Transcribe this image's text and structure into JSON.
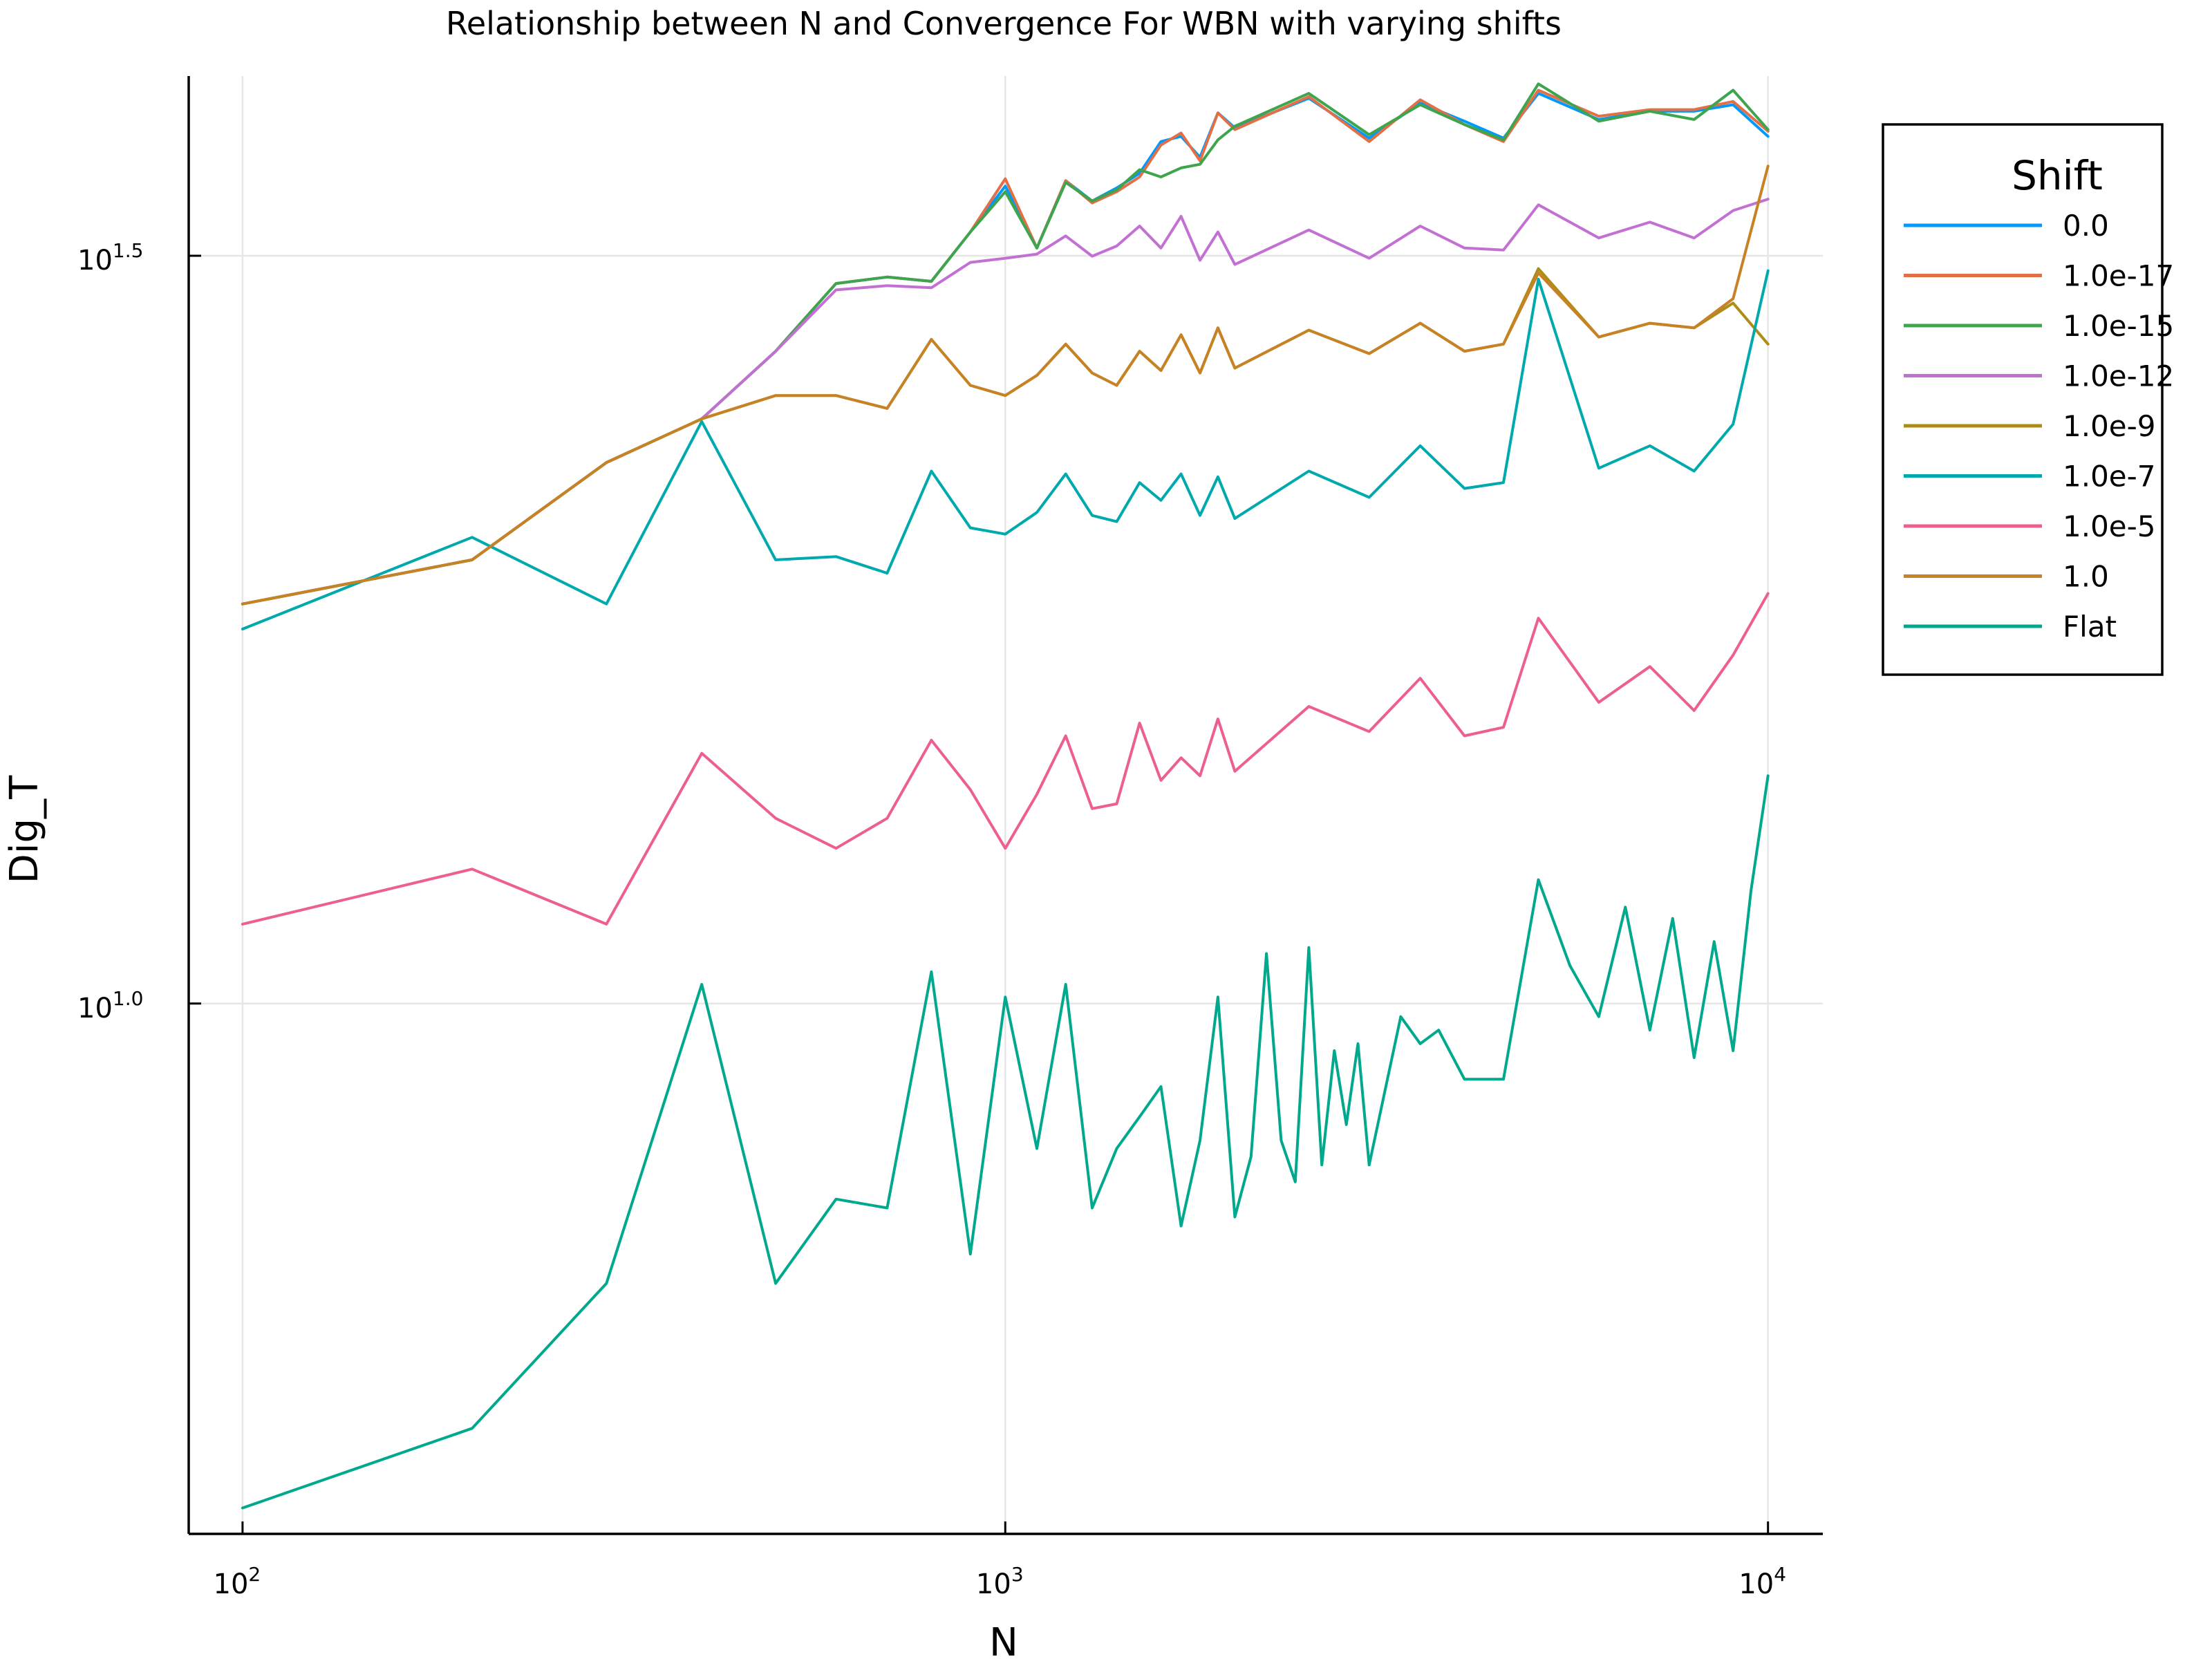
{
  "chart_data": {
    "type": "line",
    "title": "Relationship between N and Convergence For WBN with varying shifts",
    "xlabel": "N",
    "ylabel": "Dig_T",
    "x_scale": "log10",
    "y_scale": "log10",
    "xlim": [
      85,
      11800
    ],
    "ylim": [
      4.42,
      41.7
    ],
    "grid": true,
    "legend": {
      "title": "Shift",
      "placement": "top-right, outside plot area"
    },
    "x_ticks": [
      {
        "value": 100,
        "base": "10",
        "exp": "2"
      },
      {
        "value": 1000,
        "base": "10",
        "exp": "3"
      },
      {
        "value": 10000,
        "base": "10",
        "exp": "4"
      }
    ],
    "y_ticks": [
      {
        "value": 10,
        "base": "10",
        "exp": "1.0"
      },
      {
        "value": 31.62,
        "base": "10",
        "exp": "1.5"
      }
    ],
    "series": [
      {
        "name": "0.0",
        "color": "#009AFA",
        "x": [
          100,
          200,
          300,
          400,
          500,
          600,
          700,
          800,
          900,
          1000,
          1100,
          1200,
          1300,
          1400,
          1500,
          1600,
          1700,
          1800,
          1900,
          2000,
          2500,
          3000,
          3500,
          4000,
          4500,
          5000,
          6000,
          7000,
          8000,
          9000,
          10000
        ],
        "y": [
          18.5,
          19.8,
          23.0,
          24.6,
          27.3,
          30.3,
          30.6,
          30.4,
          32.8,
          35.2,
          32.0,
          35.5,
          34.4,
          35.1,
          35.9,
          37.7,
          38.0,
          36.8,
          39.4,
          38.5,
          40.3,
          37.9,
          40.0,
          38.9,
          37.9,
          40.6,
          39.0,
          39.5,
          39.5,
          39.9,
          38.0
        ]
      },
      {
        "name": "1.0e-17",
        "color": "#E36F47",
        "x": [
          100,
          200,
          300,
          400,
          500,
          600,
          700,
          800,
          900,
          1000,
          1100,
          1200,
          1300,
          1400,
          1500,
          1600,
          1700,
          1800,
          1900,
          2000,
          2500,
          3000,
          3500,
          4000,
          4500,
          5000,
          6000,
          7000,
          8000,
          9000,
          10000
        ],
        "y": [
          18.5,
          19.8,
          23.0,
          24.6,
          27.3,
          30.3,
          30.6,
          30.4,
          32.8,
          35.6,
          32.0,
          35.5,
          34.3,
          34.9,
          35.7,
          37.5,
          38.2,
          36.6,
          39.4,
          38.4,
          40.4,
          37.7,
          40.2,
          38.7,
          37.7,
          40.8,
          39.2,
          39.6,
          39.6,
          40.1,
          38.3
        ]
      },
      {
        "name": "1.0e-15",
        "color": "#3EA44E",
        "x": [
          100,
          200,
          300,
          400,
          500,
          600,
          700,
          800,
          900,
          1000,
          1100,
          1200,
          1300,
          1400,
          1500,
          1600,
          1700,
          1800,
          1900,
          2000,
          2500,
          3000,
          3500,
          4000,
          4500,
          5000,
          6000,
          7000,
          8000,
          9000,
          10000
        ],
        "y": [
          18.5,
          19.8,
          23.0,
          24.6,
          27.3,
          30.3,
          30.6,
          30.4,
          32.8,
          34.9,
          32.0,
          35.4,
          34.4,
          35.0,
          36.1,
          35.7,
          36.2,
          36.4,
          37.8,
          38.6,
          40.6,
          38.1,
          39.9,
          38.7,
          37.8,
          41.2,
          38.9,
          39.5,
          39.0,
          40.8,
          38.4
        ]
      },
      {
        "name": "1.0e-12",
        "color": "#C271D2",
        "x": [
          100,
          200,
          300,
          400,
          500,
          600,
          700,
          800,
          900,
          1000,
          1100,
          1200,
          1300,
          1400,
          1500,
          1600,
          1700,
          1800,
          1900,
          2000,
          2500,
          3000,
          3500,
          4000,
          4500,
          5000,
          6000,
          7000,
          8000,
          9000,
          10000
        ],
        "y": [
          18.5,
          19.8,
          23.0,
          24.6,
          27.3,
          30.0,
          30.2,
          30.1,
          31.3,
          31.5,
          31.7,
          32.6,
          31.6,
          32.1,
          33.1,
          32.0,
          33.6,
          31.4,
          32.8,
          31.2,
          32.9,
          31.5,
          33.1,
          32.0,
          31.9,
          34.2,
          32.5,
          33.3,
          32.5,
          33.9,
          34.5
        ]
      },
      {
        "name": "1.0e-9",
        "color": "#AC8D18",
        "x": [
          100,
          200,
          300,
          400,
          500,
          600,
          700,
          800,
          900,
          1000,
          1100,
          1200,
          1300,
          1400,
          1500,
          1600,
          1700,
          1800,
          1900,
          2000,
          2500,
          3000,
          3500,
          4000,
          4500,
          5000,
          6000,
          7000,
          8000,
          9000,
          10000
        ],
        "y": [
          18.5,
          19.8,
          23.0,
          24.6,
          25.5,
          25.5,
          25.0,
          27.8,
          25.9,
          25.5,
          26.3,
          27.6,
          26.4,
          25.9,
          27.3,
          26.5,
          28.0,
          26.4,
          28.3,
          26.6,
          28.2,
          27.2,
          28.5,
          27.3,
          27.6,
          31.0,
          27.9,
          28.5,
          28.3,
          29.4,
          27.6
        ]
      },
      {
        "name": "1.0e-7",
        "color": "#00A9AD",
        "x": [
          100,
          200,
          300,
          400,
          500,
          600,
          700,
          800,
          900,
          1000,
          1100,
          1200,
          1300,
          1400,
          1500,
          1600,
          1700,
          1800,
          1900,
          2000,
          2500,
          3000,
          3500,
          4000,
          4500,
          5000,
          6000,
          7000,
          8000,
          9000,
          10000
        ],
        "y": [
          17.8,
          20.5,
          18.5,
          24.5,
          19.8,
          19.9,
          19.4,
          22.7,
          20.8,
          20.6,
          21.3,
          22.6,
          21.2,
          21.0,
          22.3,
          21.7,
          22.6,
          21.2,
          22.5,
          21.1,
          22.7,
          21.8,
          23.6,
          22.1,
          22.3,
          30.5,
          22.8,
          23.6,
          22.7,
          24.4,
          30.9
        ]
      },
      {
        "name": "1.0e-5",
        "color": "#ED5E93",
        "x": [
          100,
          200,
          300,
          400,
          500,
          600,
          700,
          800,
          900,
          1000,
          1100,
          1200,
          1300,
          1400,
          1500,
          1600,
          1700,
          1800,
          1900,
          2000,
          2500,
          3000,
          3500,
          4000,
          4500,
          5000,
          6000,
          7000,
          8000,
          9000,
          10000
        ],
        "y": [
          11.3,
          12.3,
          11.3,
          14.7,
          13.3,
          12.7,
          13.3,
          15.0,
          13.9,
          12.7,
          13.8,
          15.1,
          13.5,
          13.6,
          15.4,
          14.1,
          14.6,
          14.2,
          15.5,
          14.3,
          15.8,
          15.2,
          16.5,
          15.1,
          15.3,
          18.1,
          15.9,
          16.8,
          15.7,
          17.1,
          18.8
        ]
      },
      {
        "name": "1.0",
        "color": "#C68225",
        "x": [
          100,
          200,
          300,
          400,
          500,
          600,
          700,
          800,
          900,
          1000,
          1100,
          1200,
          1300,
          1400,
          1500,
          1600,
          1700,
          1800,
          1900,
          2000,
          2500,
          3000,
          3500,
          4000,
          4500,
          5000,
          6000,
          7000,
          8000,
          9000,
          10000
        ],
        "y": [
          18.5,
          19.8,
          23.0,
          24.6,
          25.5,
          25.5,
          25.0,
          27.8,
          25.9,
          25.5,
          26.3,
          27.6,
          26.4,
          25.9,
          27.3,
          26.5,
          28.0,
          26.4,
          28.3,
          26.6,
          28.2,
          27.2,
          28.5,
          27.3,
          27.6,
          30.8,
          27.9,
          28.5,
          28.3,
          29.6,
          36.3
        ]
      },
      {
        "name": "Flat",
        "color": "#00A98D",
        "x": [
          100,
          200,
          300,
          400,
          500,
          600,
          700,
          800,
          900,
          1000,
          1100,
          1200,
          1300,
          1400,
          1500,
          1600,
          1700,
          1800,
          1900,
          2000,
          2100,
          2200,
          2300,
          2400,
          2500,
          2600,
          2700,
          2800,
          2900,
          3000,
          3300,
          3500,
          3700,
          4000,
          4500,
          5000,
          5500,
          6000,
          6500,
          7000,
          7500,
          8000,
          8500,
          9000,
          9500,
          10000
        ],
        "y": [
          4.6,
          5.2,
          6.5,
          10.3,
          6.5,
          7.4,
          7.3,
          10.5,
          6.8,
          10.1,
          8.0,
          10.3,
          7.3,
          8.0,
          8.4,
          8.8,
          7.1,
          8.1,
          10.1,
          7.2,
          7.9,
          10.8,
          8.1,
          7.6,
          10.9,
          7.8,
          9.3,
          8.3,
          9.4,
          7.8,
          9.8,
          9.4,
          9.6,
          8.9,
          8.9,
          12.1,
          10.6,
          9.8,
          11.6,
          9.6,
          11.4,
          9.2,
          11.0,
          9.3,
          11.9,
          14.2
        ]
      }
    ]
  }
}
